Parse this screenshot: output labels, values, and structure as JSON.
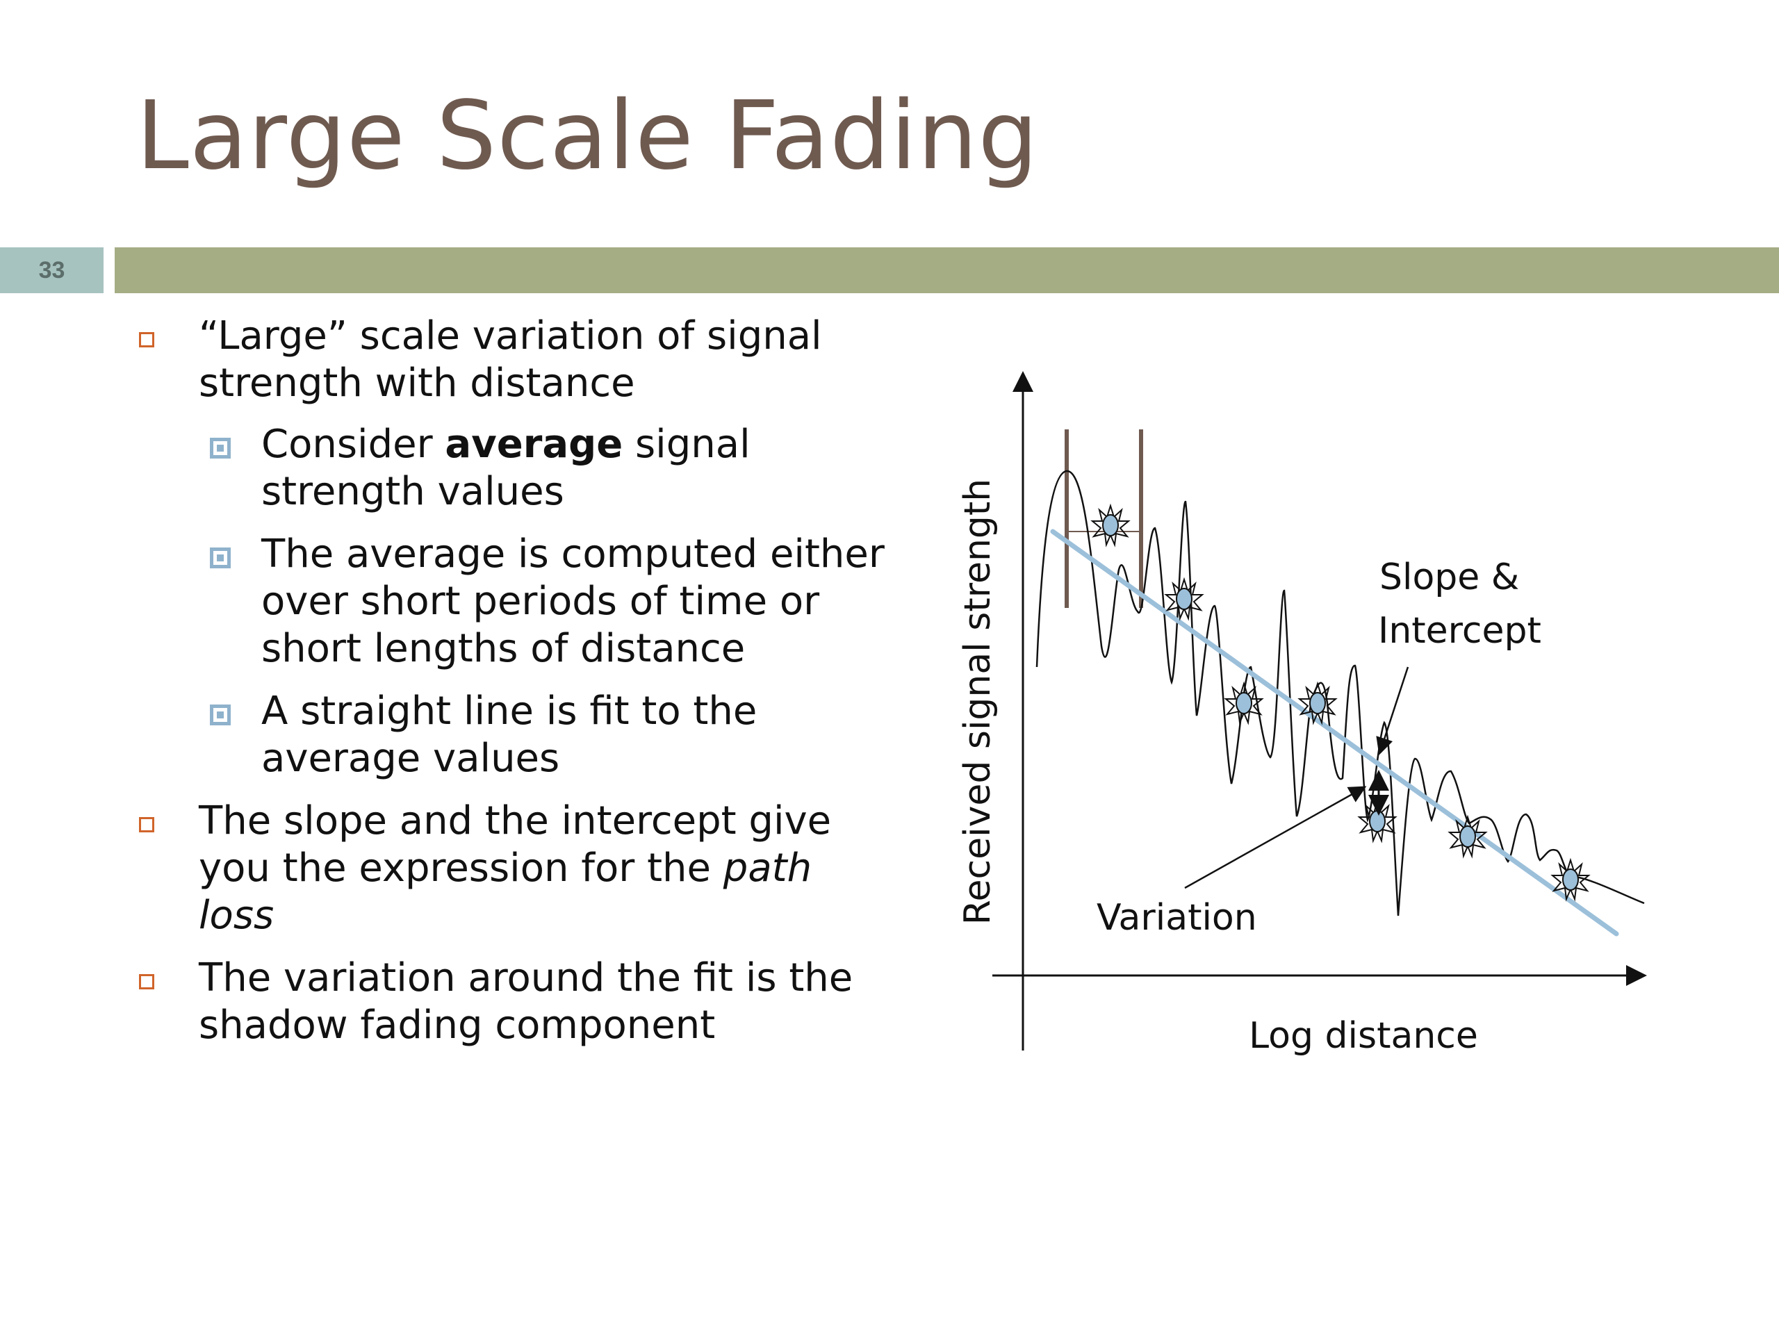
{
  "slide": {
    "title": "Large Scale Fading",
    "number": "33",
    "colors": {
      "title": "#6f5a50",
      "band": "#a5ad85",
      "number_box": "#a7c3c0",
      "bullet_marker": "#d0642a",
      "sub_marker": "#8fb2cc",
      "fit_line": "#9cc0da"
    }
  },
  "bullets": [
    {
      "text": "“Large” scale variation of signal strength with distance"
    },
    {
      "pre": "Consider ",
      "bold": "average",
      "post": " signal strength values"
    },
    {
      "text": "The average is computed either over short periods of time or short lengths of distance"
    },
    {
      "text": "A straight line is fit to the average values"
    },
    {
      "pre": "The slope and the intercept give you the expression for the ",
      "italic": "path loss"
    },
    {
      "text": "The variation around the fit is the shadow fading component"
    }
  ],
  "chart_data": {
    "type": "diagram",
    "xlabel": "Log distance",
    "ylabel": "Received signal strength",
    "annotations": {
      "slope": "Slope &",
      "intercept": "Intercept",
      "variation": "Variation"
    },
    "grid": false
  }
}
